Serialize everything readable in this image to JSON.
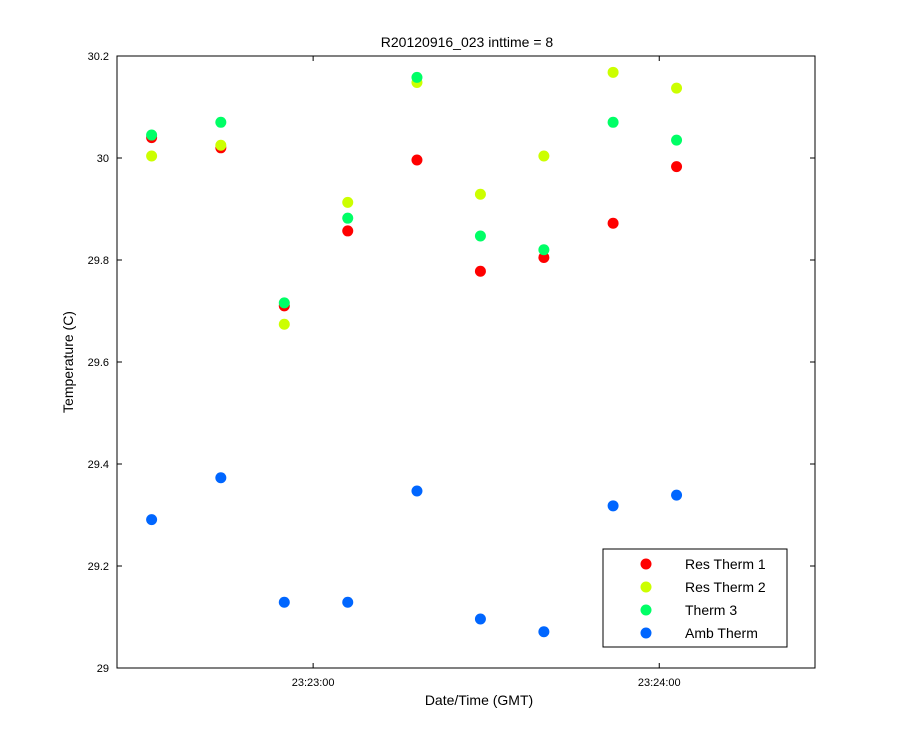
{
  "chart_data": {
    "type": "scatter",
    "title": "R20120916_023 inttime = 8",
    "xlabel": "Date/Time (GMT)",
    "ylabel": "Temperature (C)",
    "x_unit": "time",
    "xlim": [
      "23:22:26",
      "23:24:27"
    ],
    "ylim": [
      29,
      30.2
    ],
    "x_ticks": [
      "23:23:00",
      "23:24:00"
    ],
    "y_ticks": [
      "29",
      "29.2",
      "29.4",
      "29.6",
      "29.8",
      "30",
      "30.2"
    ],
    "grid": false,
    "legend_position": "bottom-right",
    "x": [
      "23:22:32",
      "23:22:44",
      "23:22:55",
      "23:23:06",
      "23:23:18",
      "23:23:29",
      "23:23:40",
      "23:23:52",
      "23:24:03"
    ],
    "series": [
      {
        "name": "Res Therm 1",
        "color": "#ff0000",
        "values": [
          30.04,
          30.02,
          29.71,
          29.857,
          29.996,
          29.778,
          29.805,
          29.872,
          29.983
        ]
      },
      {
        "name": "Res Therm 2",
        "color": "#ccff00",
        "values": [
          30.004,
          30.025,
          29.674,
          29.913,
          30.148,
          29.929,
          30.004,
          30.168,
          30.137
        ]
      },
      {
        "name": "Therm 3",
        "color": "#00ff66",
        "values": [
          30.045,
          30.07,
          29.716,
          29.882,
          30.158,
          29.847,
          29.82,
          30.07,
          30.035
        ]
      },
      {
        "name": "Amb Therm",
        "color": "#0066ff",
        "values": [
          29.291,
          29.373,
          29.129,
          29.129,
          29.347,
          29.096,
          29.071,
          29.318,
          29.339
        ]
      }
    ]
  }
}
